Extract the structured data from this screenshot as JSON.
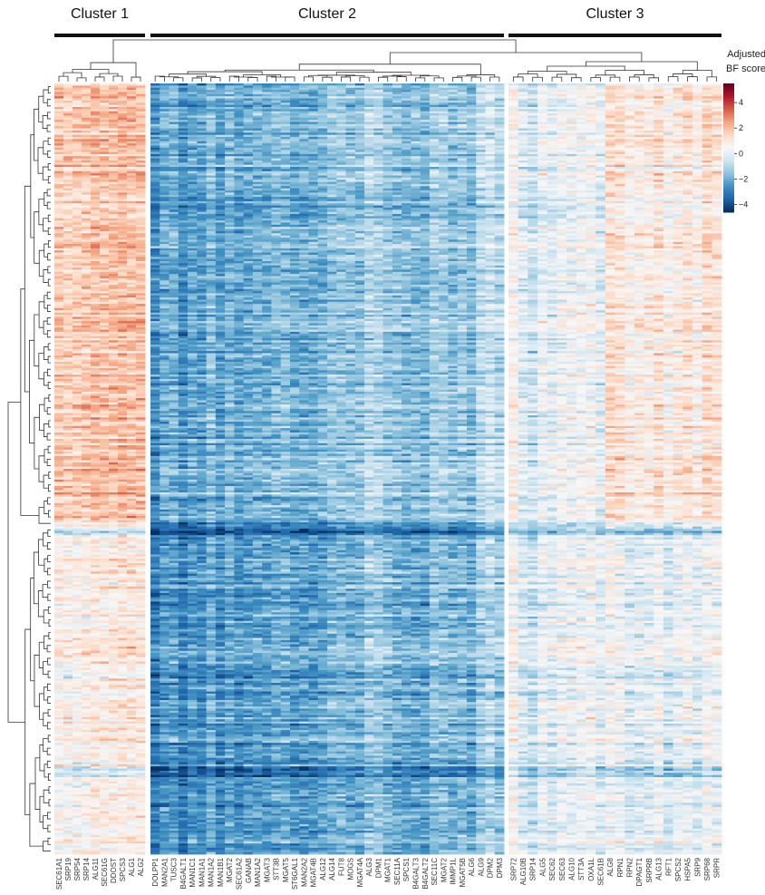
{
  "chart_data": {
    "type": "heatmap",
    "clusters": [
      {
        "label": "Cluster 1",
        "columns": [
          "SEC61A1",
          "SRP19",
          "SRP54",
          "SRP14",
          "ALG11",
          "SEC61G",
          "DDOST",
          "SPCS3",
          "ALG1",
          "ALG2"
        ]
      },
      {
        "label": "Cluster 2",
        "columns": [
          "DOLPP1",
          "MAN2A1",
          "TUSC3",
          "B4GALT1",
          "MAN1C1",
          "MAN1A1",
          "MAN1A2",
          "MAN1B1",
          "MGAT2",
          "SEC61A2",
          "GANAB",
          "MAN1A2",
          "MGAT3",
          "STT3B",
          "MGAT5",
          "ST6GAL1",
          "MAN2A2",
          "MGAT4B",
          "ALG12",
          "ALG14",
          "FUT8",
          "MOGS",
          "MGAT4A",
          "ALG3",
          "DPM1",
          "MGAT1",
          "SEC11A",
          "SPCS1",
          "B4GALT3",
          "B4GALT2",
          "SEC11C",
          "MGAT2",
          "IMMP1L",
          "MGAT5B",
          "ALG6",
          "ALG9",
          "DPM2",
          "DPM3"
        ]
      },
      {
        "label": "Cluster 3",
        "columns": [
          "SRP72",
          "ALG10B",
          "SRP14",
          "ALG5",
          "SEC62",
          "SEC63",
          "ALG10",
          "STT3A",
          "OXA1L",
          "SEC61B",
          "ALG8",
          "RPN1",
          "RPN2",
          "DPAGT1",
          "SRPRB",
          "ALG13",
          "RFT1",
          "SPCS2",
          "HSPA5",
          "SRP9",
          "SRP68",
          "SRPR"
        ]
      }
    ],
    "colorbar": {
      "title_lines": [
        "Adjusted",
        "BF score"
      ],
      "ticks": [
        4,
        2,
        0,
        -2,
        -4
      ],
      "range": [
        -4.6,
        5.5
      ],
      "colors": [
        "#053061",
        "#2166ac",
        "#4393c3",
        "#92c5de",
        "#d1e5f0",
        "#f7f7f7",
        "#fddbc7",
        "#f4a582",
        "#d6604d",
        "#b2182b",
        "#67001f"
      ]
    },
    "cluster_means": {
      "Cluster 1": 2.0,
      "Cluster 2": -2.4,
      "Cluster 3": 0.0
    },
    "rows": 360
  }
}
